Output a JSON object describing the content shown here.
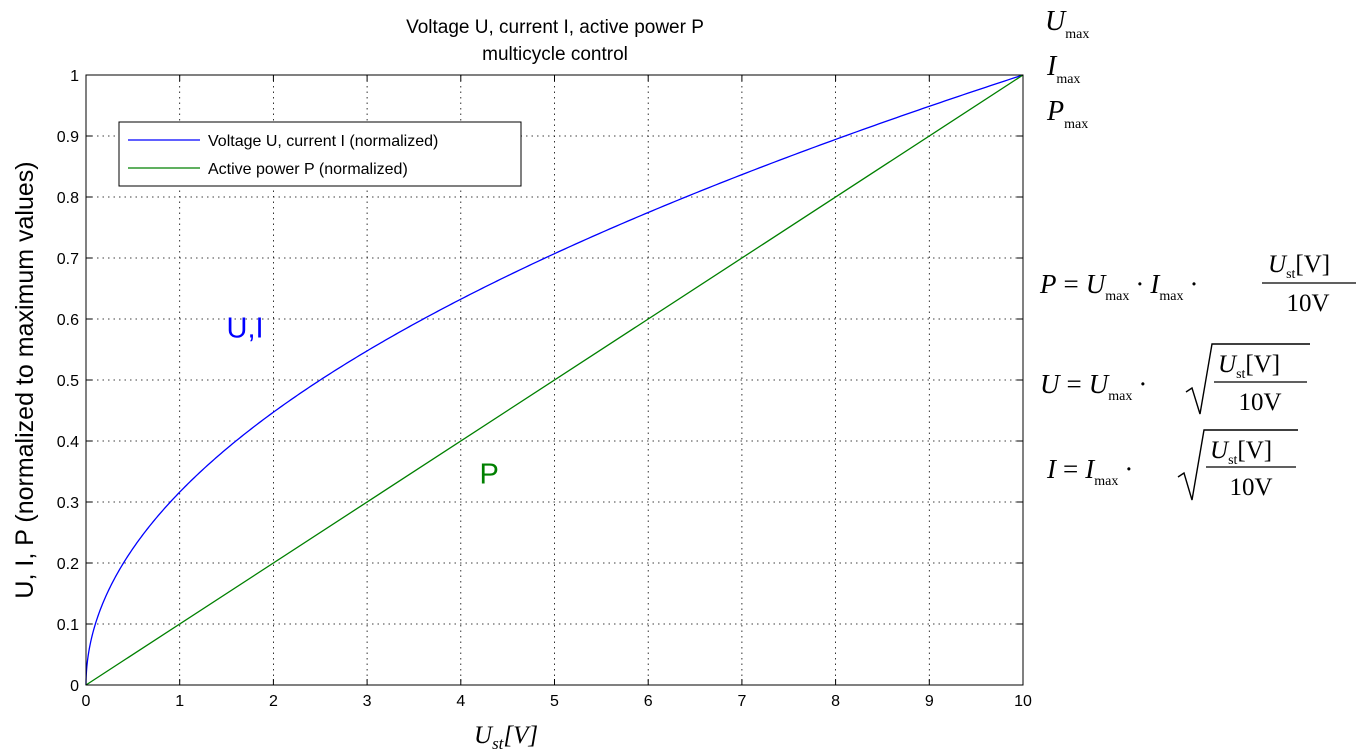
{
  "chart_data": {
    "type": "line",
    "title_line1": "Voltage U, current I, active power P",
    "title_line2": "multicycle control",
    "xlabel": {
      "main": "U",
      "sub": "st",
      "unit": "[V]"
    },
    "ylabel": "U, I, P (normalized to maximum values)",
    "xlim": [
      0,
      10
    ],
    "ylim": [
      0,
      1
    ],
    "xticks": [
      0,
      1,
      2,
      3,
      4,
      5,
      6,
      7,
      8,
      9,
      10
    ],
    "yticks": [
      0,
      0.1,
      0.2,
      0.3,
      0.4,
      0.5,
      0.6,
      0.7,
      0.8,
      0.9,
      1
    ],
    "grid": true,
    "legend_position": "top-left",
    "series": [
      {
        "name": "Voltage U, current I (normalized)",
        "color": "#0000ff",
        "formula": "sqrt(x/10)",
        "x": [
          0,
          0.1,
          0.25,
          0.5,
          1,
          1.5,
          2,
          2.5,
          3,
          3.5,
          4,
          4.5,
          5,
          5.5,
          6,
          6.5,
          7,
          7.5,
          8,
          8.5,
          9,
          9.5,
          10
        ],
        "y": [
          0,
          0.1,
          0.158,
          0.224,
          0.316,
          0.387,
          0.447,
          0.5,
          0.548,
          0.592,
          0.632,
          0.671,
          0.707,
          0.742,
          0.775,
          0.806,
          0.837,
          0.866,
          0.894,
          0.922,
          0.949,
          0.975,
          1
        ]
      },
      {
        "name": "Active power P (normalized)",
        "color": "#008000",
        "formula": "x/10",
        "x": [
          0,
          10
        ],
        "y": [
          0,
          1
        ]
      }
    ],
    "annotations": [
      {
        "text": "U,I",
        "x": 1.5,
        "y": 0.57,
        "color": "#0000ff"
      },
      {
        "text": "P",
        "x": 4.2,
        "y": 0.33,
        "color": "#008000"
      }
    ]
  },
  "right_labels": {
    "umax": {
      "main": "U",
      "sub": "max"
    },
    "imax": {
      "main": "I",
      "sub": "max"
    },
    "pmax": {
      "main": "P",
      "sub": "max"
    }
  },
  "formulas": {
    "p": {
      "lhs": "P",
      "eq": "=",
      "u": "U",
      "u_sub": "max",
      "dot": "·",
      "i": "I",
      "i_sub": "max",
      "num_main": "U",
      "num_sub": "st",
      "num_unit": "[V]",
      "den": "10V"
    },
    "u": {
      "lhs": "U",
      "eq": "=",
      "u": "U",
      "u_sub": "max",
      "dot": "·",
      "num_main": "U",
      "num_sub": "st",
      "num_unit": "[V]",
      "den": "10V"
    },
    "i": {
      "lhs": "I",
      "eq": "=",
      "i": "I",
      "i_sub": "max",
      "dot": "·",
      "num_main": "U",
      "num_sub": "st",
      "num_unit": "[V]",
      "den": "10V"
    }
  }
}
